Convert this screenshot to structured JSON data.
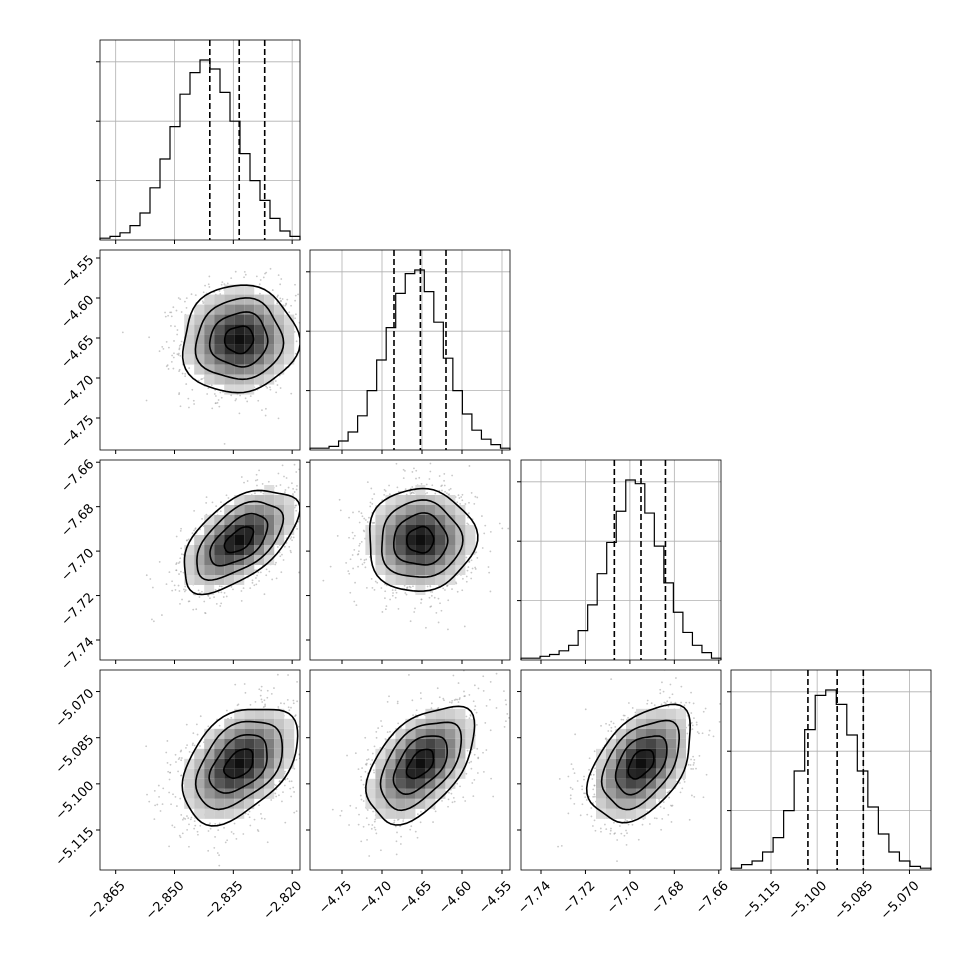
{
  "chart_data": {
    "type": "corner",
    "parameters": [
      {
        "ticks": [
          "−2.865",
          "−2.850",
          "−2.835",
          "−2.820"
        ],
        "tick_values": [
          -2.865,
          -2.85,
          -2.835,
          -2.82
        ],
        "range": [
          -2.869,
          -2.818
        ],
        "quantiles": [
          -2.841,
          -2.8335,
          -2.827
        ]
      },
      {
        "ticks": [
          "−4.75",
          "−4.70",
          "−4.65",
          "−4.60",
          "−4.55"
        ],
        "tick_values": [
          -4.75,
          -4.7,
          -4.65,
          -4.6,
          -4.55
        ],
        "range": [
          -4.79,
          -4.54
        ],
        "quantiles": [
          -4.685,
          -4.652,
          -4.62
        ]
      },
      {
        "ticks": [
          "−7.74",
          "−7.72",
          "−7.70",
          "−7.68",
          "−7.66"
        ],
        "tick_values": [
          -7.74,
          -7.72,
          -7.7,
          -7.68,
          -7.66
        ],
        "range": [
          -7.749,
          -7.659
        ],
        "quantiles": [
          -7.707,
          -7.695,
          -7.684
        ]
      },
      {
        "ticks": [
          "−5.115",
          "−5.100",
          "−5.085",
          "−5.070"
        ],
        "tick_values": [
          -5.115,
          -5.1,
          -5.085,
          -5.07
        ],
        "range": [
          -5.128,
          -5.063
        ],
        "quantiles": [
          -5.103,
          -5.0935,
          -5.085
        ]
      }
    ],
    "histograms": [
      [
        1,
        2,
        4,
        8,
        15,
        29,
        45,
        63,
        81,
        93,
        100,
        95,
        82,
        66,
        48,
        33,
        22,
        12,
        5,
        2
      ],
      [
        1,
        1,
        2,
        5,
        10,
        19,
        33,
        50,
        68,
        87,
        98,
        100,
        88,
        71,
        51,
        33,
        20,
        11,
        6,
        3,
        1
      ],
      [
        1,
        1,
        2,
        3,
        5,
        8,
        16,
        30,
        47,
        64,
        81,
        98,
        96,
        80,
        62,
        42,
        26,
        15,
        8,
        4,
        1
      ],
      [
        1,
        3,
        5,
        10,
        18,
        33,
        55,
        78,
        97,
        100,
        92,
        75,
        55,
        35,
        20,
        10,
        5,
        2,
        1
      ]
    ],
    "joint": [
      {
        "x": 0,
        "y": 1,
        "mean": [
          -2.8335,
          -4.652
        ],
        "sd": [
          0.007,
          0.032
        ],
        "corr": 0.05
      },
      {
        "x": 0,
        "y": 2,
        "mean": [
          -2.8335,
          -7.695
        ],
        "sd": [
          0.007,
          0.011
        ],
        "corr": 0.55
      },
      {
        "x": 1,
        "y": 2,
        "mean": [
          -4.652,
          -7.695
        ],
        "sd": [
          0.032,
          0.011
        ],
        "corr": 0.03
      },
      {
        "x": 0,
        "y": 3,
        "mean": [
          -2.8335,
          -5.0935
        ],
        "sd": [
          0.007,
          0.009
        ],
        "corr": 0.42
      },
      {
        "x": 1,
        "y": 3,
        "mean": [
          -4.652,
          -5.0935
        ],
        "sd": [
          0.032,
          0.009
        ],
        "corr": 0.5
      },
      {
        "x": 2,
        "y": 3,
        "mean": [
          -7.695,
          -5.0935
        ],
        "sd": [
          0.011,
          0.009
        ],
        "corr": 0.45
      }
    ],
    "contour_levels": [
      0.5,
      1.0,
      1.5,
      2.0
    ],
    "grid": true
  }
}
